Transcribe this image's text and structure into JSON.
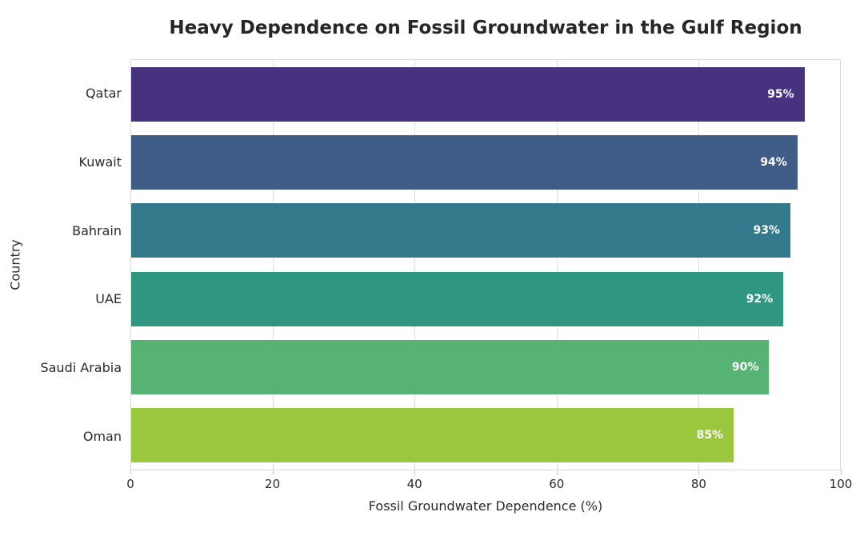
{
  "chart_data": {
    "type": "bar",
    "orientation": "horizontal",
    "title": "Heavy Dependence on Fossil Groundwater in the Gulf Region",
    "xlabel": "Fossil Groundwater Dependence (%)",
    "ylabel": "Country",
    "categories": [
      "Qatar",
      "Kuwait",
      "Bahrain",
      "UAE",
      "Saudi Arabia",
      "Oman"
    ],
    "values": [
      95,
      94,
      93,
      92,
      90,
      85
    ],
    "value_labels": [
      "95%",
      "94%",
      "93%",
      "92%",
      "90%",
      "85%"
    ],
    "bar_colors": [
      "#46327e",
      "#3f5c87",
      "#34788c",
      "#2f9681",
      "#57b373",
      "#9ac73d"
    ],
    "xlim": [
      0,
      100
    ],
    "x_ticks": [
      "0",
      "20",
      "40",
      "60",
      "80",
      "100"
    ],
    "grid": true,
    "gridline_positions_pct": [
      20,
      40,
      60,
      80
    ],
    "legend_position": "none",
    "background_color": "#ffffff",
    "grid_color": "#dcdcdc",
    "spine_color": "#d8d8d8",
    "title_color": "#262626",
    "tick_label_color": "#2b2b2b",
    "bar_label_color": "#ffffff"
  }
}
